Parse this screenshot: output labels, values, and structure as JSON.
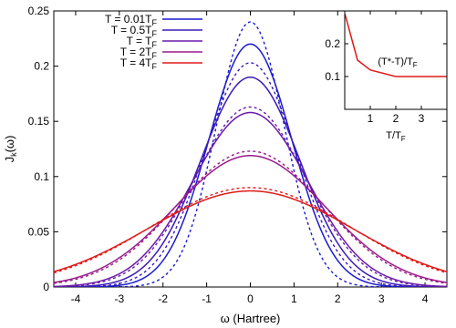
{
  "chart_data": [
    {
      "type": "line",
      "xlabel": "ω (Hartree)",
      "ylabel": "J",
      "ylabel_sub": "k",
      "ylabel_tail": "(ω)",
      "xlim": [
        -4.5,
        4.5
      ],
      "ylim": [
        0,
        0.25
      ],
      "xticks": [
        -4,
        -3,
        -2,
        -1,
        0,
        1,
        2,
        3,
        4
      ],
      "yticks": [
        0,
        0.05,
        0.1,
        0.15,
        0.2,
        0.25
      ],
      "ytick_labels": [
        "0",
        "0.05",
        "0.1",
        "0.15",
        "0.2",
        "0.25"
      ],
      "legend_placement": "top-left",
      "series": [
        {
          "label": "T = 0.01T",
          "label_sub": "F",
          "color": "#1a1ad0",
          "peak": 0.22,
          "width": 0.95,
          "dashed_peak": 0.24,
          "dashed_width": 0.78
        },
        {
          "label": "T = 0.5T",
          "label_sub": "F",
          "color": "#3a1ab8",
          "peak": 0.19,
          "width": 1.13,
          "dashed_peak": 0.203,
          "dashed_width": 1.04
        },
        {
          "label": "T = T",
          "label_sub": "F",
          "color": "#6a1aa8",
          "peak": 0.158,
          "width": 1.32,
          "dashed_peak": 0.163,
          "dashed_width": 1.27
        },
        {
          "label": "T = 2T",
          "label_sub": "F",
          "color": "#9a1a8a",
          "peak": 0.119,
          "width": 1.73,
          "dashed_peak": 0.123,
          "dashed_width": 1.67
        },
        {
          "label": "T = 4T",
          "label_sub": "F",
          "color": "#e01a1a",
          "peak": 0.087,
          "width": 2.35,
          "dashed_peak": 0.09,
          "dashed_width": 2.28
        }
      ]
    },
    {
      "type": "line",
      "title": "(T*-T)/T",
      "title_sub": "F",
      "xlabel": "T/T",
      "xlabel_sub": "F",
      "xlim": [
        0,
        4
      ],
      "ylim": [
        0,
        0.3
      ],
      "xticks": [
        1,
        2,
        3
      ],
      "yticks": [
        0.1,
        0.2
      ],
      "ytick_labels": [
        "0.1",
        "0.2"
      ],
      "series": [
        {
          "color": "#e01a1a",
          "x": [
            0.01,
            0.5,
            1.0,
            2.0,
            4.0
          ],
          "y": [
            0.29,
            0.15,
            0.12,
            0.1,
            0.1
          ]
        }
      ]
    }
  ]
}
